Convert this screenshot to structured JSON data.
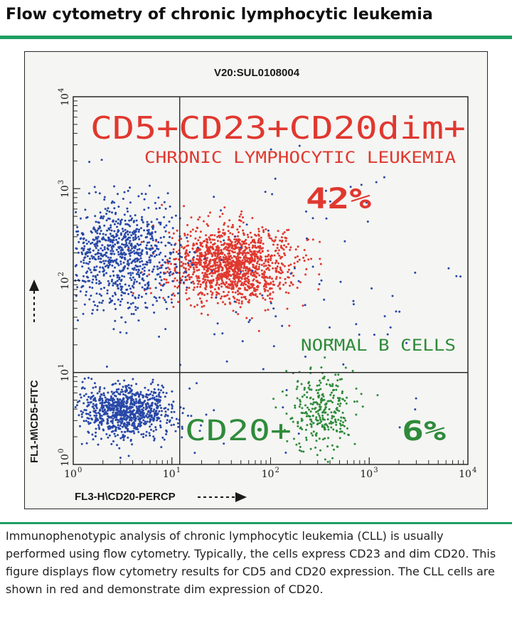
{
  "page": {
    "title": "Flow cytometry of chronic lymphocytic leukemia",
    "caption": "Immunophenotypic analysis of chronic lymphocytic leukemia (CLL) is usually performed using flow cytometry. Typically, the cells express CD23 and dim CD20. This figure displays flow cytometry results for CD5 and CD20 expression. The CLL cells are shown in red and demonstrate dim expression of CD20."
  },
  "colors": {
    "accent_rule": "#1e9e63",
    "cll_red": "#e0382f",
    "normal_b_green": "#2e8b3a",
    "other_blue": "#2747a8"
  },
  "chart_data": {
    "type": "scatter",
    "sample_id": "V20:SUL0108004",
    "xlabel": "FL3-H\\CD20-PERCP",
    "ylabel": "FL1-M\\CD5-FITC",
    "x_scale": "log",
    "y_scale": "log",
    "xlim": [
      1,
      10000
    ],
    "ylim": [
      1,
      10000
    ],
    "x_ticks": [
      {
        "base": "10",
        "exp": "0"
      },
      {
        "base": "10",
        "exp": "1"
      },
      {
        "base": "10",
        "exp": "2"
      },
      {
        "base": "10",
        "exp": "3"
      },
      {
        "base": "10",
        "exp": "4"
      }
    ],
    "y_ticks": [
      {
        "base": "10",
        "exp": "0"
      },
      {
        "base": "10",
        "exp": "1"
      },
      {
        "base": "10",
        "exp": "2"
      },
      {
        "base": "10",
        "exp": "3"
      },
      {
        "base": "10",
        "exp": "4"
      }
    ],
    "quadrant_gates": {
      "x": 12,
      "y": 10
    },
    "annotations": {
      "cll_phenotype": "CD5+CD23+CD20dim+",
      "cll_name": "CHRONIC LYMPHOCYTIC LEUKEMIA",
      "cll_percent": "42%",
      "normal_name": "NORMAL B CELLS",
      "normal_phenotype": "CD20+",
      "normal_percent": "6%"
    },
    "series": [
      {
        "population": "cll",
        "color": "#e0382f",
        "count": 1400,
        "center_x": 40,
        "center_y": 150,
        "spread_x": 0.3,
        "spread_y": 0.2
      },
      {
        "population": "normal_b",
        "color": "#2e8b3a",
        "count": 300,
        "center_x": 320,
        "center_y": 4,
        "spread_x": 0.17,
        "spread_y": 0.22
      },
      {
        "population": "upper_left",
        "color": "#2747a8",
        "count": 900,
        "center_x": 3,
        "center_y": 200,
        "spread_x": 0.3,
        "spread_y": 0.3
      },
      {
        "population": "lower_left",
        "color": "#2747a8",
        "count": 900,
        "center_x": 3.5,
        "center_y": 3.8,
        "spread_x": 0.24,
        "spread_y": 0.15
      },
      {
        "population": "scattered",
        "color": "#2747a8",
        "count": 90,
        "center_x": 150,
        "center_y": 60,
        "spread_x": 0.8,
        "spread_y": 0.7
      }
    ]
  }
}
